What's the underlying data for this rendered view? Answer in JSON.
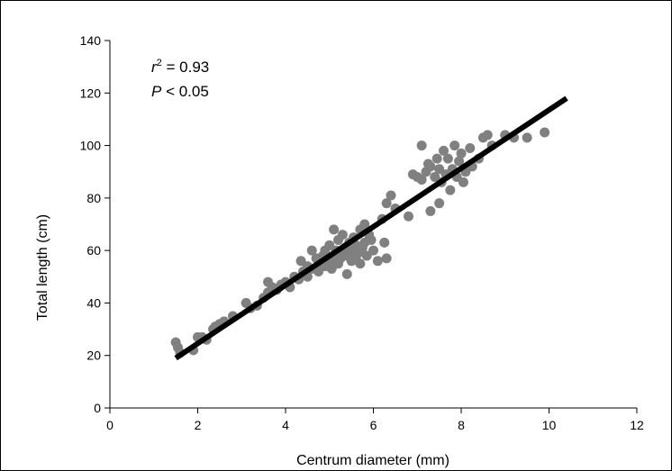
{
  "chart_data": {
    "type": "scatter",
    "xlabel": "Centrum diameter (mm)",
    "ylabel": "Total length (cm)",
    "xlim": [
      0,
      12
    ],
    "ylim": [
      0,
      140
    ],
    "x_ticks": [
      0,
      2,
      4,
      6,
      8,
      10,
      12
    ],
    "y_ticks": [
      0,
      20,
      40,
      60,
      80,
      100,
      120,
      140
    ],
    "grid": false,
    "annotations": [
      {
        "var": "r",
        "sup": "2",
        "rest": " = 0.93"
      },
      {
        "var": "P",
        "rest": " < 0.05"
      }
    ],
    "point_color": "#808080",
    "line_color": "#000000",
    "regression": {
      "x": [
        1.5,
        10.4
      ],
      "y": [
        19,
        118
      ]
    },
    "points": [
      [
        1.5,
        25
      ],
      [
        1.55,
        23
      ],
      [
        1.6,
        21
      ],
      [
        1.9,
        22
      ],
      [
        2.0,
        27
      ],
      [
        2.1,
        27
      ],
      [
        2.2,
        26
      ],
      [
        2.35,
        30
      ],
      [
        2.4,
        31
      ],
      [
        2.5,
        32
      ],
      [
        2.6,
        33
      ],
      [
        2.8,
        35
      ],
      [
        3.1,
        40
      ],
      [
        3.2,
        38
      ],
      [
        3.35,
        39
      ],
      [
        3.5,
        42
      ],
      [
        3.6,
        44
      ],
      [
        3.6,
        48
      ],
      [
        3.7,
        46
      ],
      [
        3.8,
        45
      ],
      [
        3.9,
        47
      ],
      [
        4.0,
        48
      ],
      [
        4.1,
        46
      ],
      [
        4.2,
        50
      ],
      [
        4.3,
        49
      ],
      [
        4.35,
        56
      ],
      [
        4.4,
        52
      ],
      [
        4.5,
        50
      ],
      [
        4.5,
        54
      ],
      [
        4.6,
        60
      ],
      [
        4.6,
        53
      ],
      [
        4.7,
        57
      ],
      [
        4.75,
        52
      ],
      [
        4.8,
        55
      ],
      [
        4.85,
        58
      ],
      [
        4.9,
        60
      ],
      [
        4.9,
        54
      ],
      [
        5.0,
        56
      ],
      [
        5.0,
        62
      ],
      [
        5.05,
        53
      ],
      [
        5.1,
        58
      ],
      [
        5.1,
        68
      ],
      [
        5.15,
        60
      ],
      [
        5.2,
        55
      ],
      [
        5.2,
        64
      ],
      [
        5.25,
        57
      ],
      [
        5.3,
        59
      ],
      [
        5.3,
        66
      ],
      [
        5.35,
        61
      ],
      [
        5.4,
        51
      ],
      [
        5.4,
        58
      ],
      [
        5.45,
        63
      ],
      [
        5.5,
        56
      ],
      [
        5.5,
        60
      ],
      [
        5.55,
        65
      ],
      [
        5.6,
        57
      ],
      [
        5.6,
        62
      ],
      [
        5.65,
        59
      ],
      [
        5.7,
        68
      ],
      [
        5.7,
        55
      ],
      [
        5.75,
        61
      ],
      [
        5.8,
        63
      ],
      [
        5.8,
        70
      ],
      [
        5.85,
        58
      ],
      [
        5.9,
        66
      ],
      [
        5.95,
        64
      ],
      [
        6.0,
        60
      ],
      [
        6.1,
        56
      ],
      [
        6.2,
        72
      ],
      [
        6.25,
        63
      ],
      [
        6.3,
        57
      ],
      [
        6.3,
        78
      ],
      [
        6.4,
        81
      ],
      [
        6.5,
        76
      ],
      [
        6.8,
        73
      ],
      [
        6.9,
        89
      ],
      [
        7.0,
        88
      ],
      [
        7.1,
        100
      ],
      [
        7.1,
        87
      ],
      [
        7.2,
        90
      ],
      [
        7.25,
        93
      ],
      [
        7.3,
        75
      ],
      [
        7.3,
        92
      ],
      [
        7.4,
        88
      ],
      [
        7.45,
        95
      ],
      [
        7.5,
        91
      ],
      [
        7.5,
        78
      ],
      [
        7.55,
        86
      ],
      [
        7.6,
        98
      ],
      [
        7.65,
        89
      ],
      [
        7.7,
        95
      ],
      [
        7.75,
        83
      ],
      [
        7.8,
        91
      ],
      [
        7.85,
        100
      ],
      [
        7.9,
        88
      ],
      [
        7.95,
        94
      ],
      [
        8.0,
        97
      ],
      [
        8.05,
        86
      ],
      [
        8.1,
        90
      ],
      [
        8.2,
        99
      ],
      [
        8.25,
        92
      ],
      [
        8.4,
        95
      ],
      [
        8.5,
        103
      ],
      [
        8.6,
        104
      ],
      [
        8.7,
        100
      ],
      [
        9.0,
        104
      ],
      [
        9.2,
        103
      ],
      [
        9.5,
        103
      ],
      [
        9.9,
        105
      ]
    ]
  }
}
